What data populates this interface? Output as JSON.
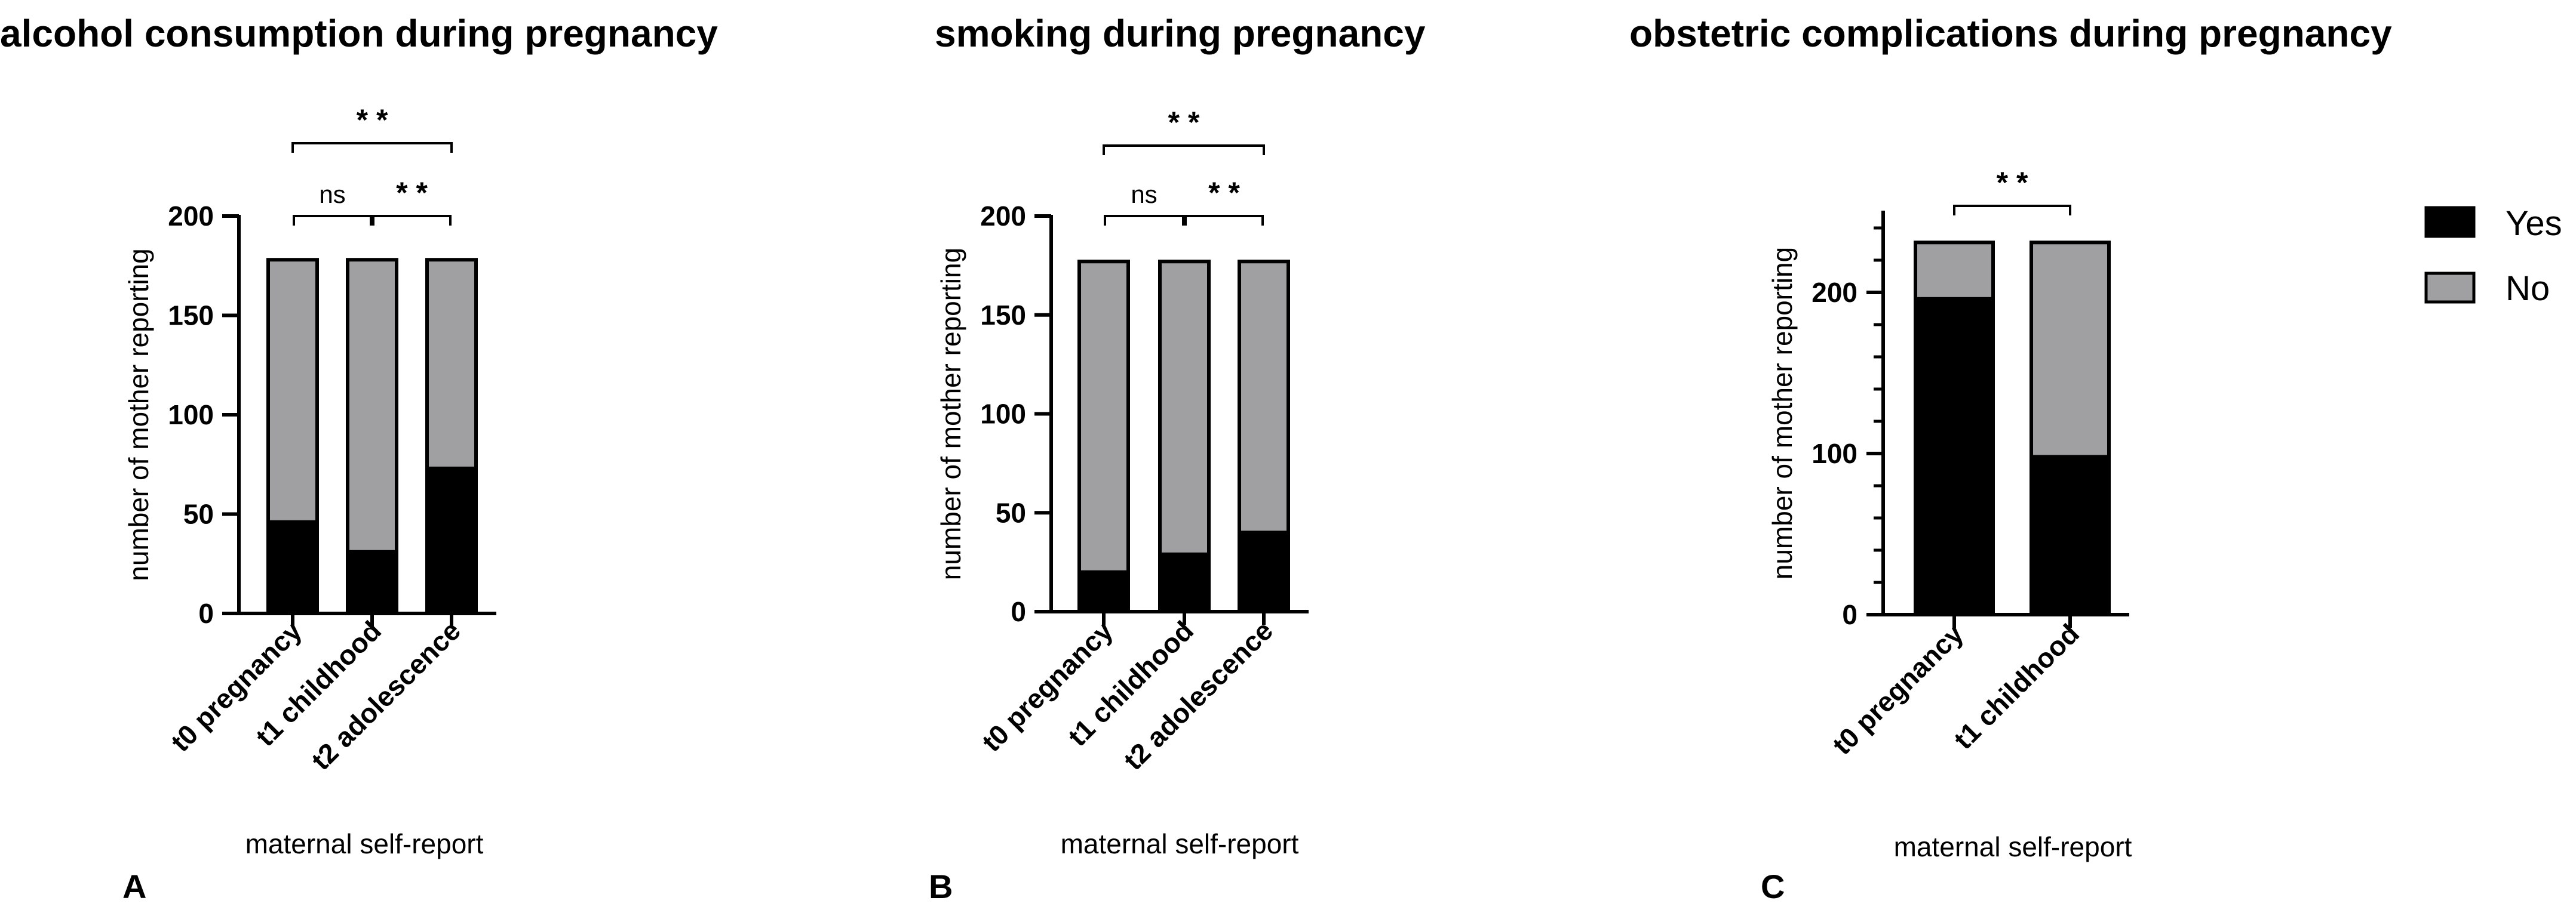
{
  "legend": [
    {
      "label": "Yes",
      "color": "#000000"
    },
    {
      "label": "No",
      "color": "#a0a0a3"
    }
  ],
  "chart_data": [
    {
      "panel": "A",
      "type": "bar",
      "stacked": true,
      "title": "alcohol consumption during pregnancy",
      "xlabel": "maternal self-report",
      "ylabel": "number of mother reporting",
      "ylim": [
        0,
        200
      ],
      "yticks": [
        0,
        50,
        100,
        150,
        200
      ],
      "yticks_labels": [
        "0",
        "50",
        "100",
        "150",
        "200"
      ],
      "categories": [
        "t0 pregnancy",
        "t1 childhood",
        "t2 adolescence"
      ],
      "series": [
        {
          "name": "Yes",
          "values": [
            46,
            31,
            73
          ]
        },
        {
          "name": "No",
          "values": [
            132,
            147,
            105
          ]
        }
      ],
      "comparisons": [
        {
          "from": 0,
          "to": 1,
          "label": "ns"
        },
        {
          "from": 1,
          "to": 2,
          "label": "* *"
        },
        {
          "from": 0,
          "to": 2,
          "label": "* *"
        }
      ]
    },
    {
      "panel": "B",
      "type": "bar",
      "stacked": true,
      "title": "smoking during pregnancy",
      "xlabel": "maternal self-report",
      "ylabel": "number of mother reporting",
      "ylim": [
        0,
        200
      ],
      "yticks": [
        0,
        50,
        100,
        150,
        200
      ],
      "yticks_labels": [
        "0",
        "50",
        "100",
        "150",
        "200"
      ],
      "categories": [
        "t0 pregnancy",
        "t1 childhood",
        "t2 adolescence"
      ],
      "series": [
        {
          "name": "Yes",
          "values": [
            20,
            29,
            40
          ]
        },
        {
          "name": "No",
          "values": [
            157,
            148,
            137
          ]
        }
      ],
      "comparisons": [
        {
          "from": 0,
          "to": 1,
          "label": "ns"
        },
        {
          "from": 1,
          "to": 2,
          "label": "* *"
        },
        {
          "from": 0,
          "to": 2,
          "label": "* *"
        }
      ]
    },
    {
      "panel": "C",
      "type": "bar",
      "stacked": true,
      "title": "obstetric complications during pregnancy",
      "xlabel": "maternal self-report",
      "ylabel": "number of mother reporting",
      "ylim": [
        0,
        250
      ],
      "yticks": [
        0,
        100,
        200
      ],
      "yticks_labels": [
        "0",
        "100",
        "200"
      ],
      "minor_ticks": [
        20,
        40,
        60,
        80,
        120,
        140,
        160,
        180,
        220,
        240
      ],
      "categories": [
        "t0 pregnancy",
        "t1 childhood"
      ],
      "series": [
        {
          "name": "Yes",
          "values": [
            196,
            98
          ]
        },
        {
          "name": "No",
          "values": [
            35,
            133
          ]
        }
      ],
      "comparisons": [
        {
          "from": 0,
          "to": 1,
          "label": "* *"
        }
      ]
    }
  ]
}
